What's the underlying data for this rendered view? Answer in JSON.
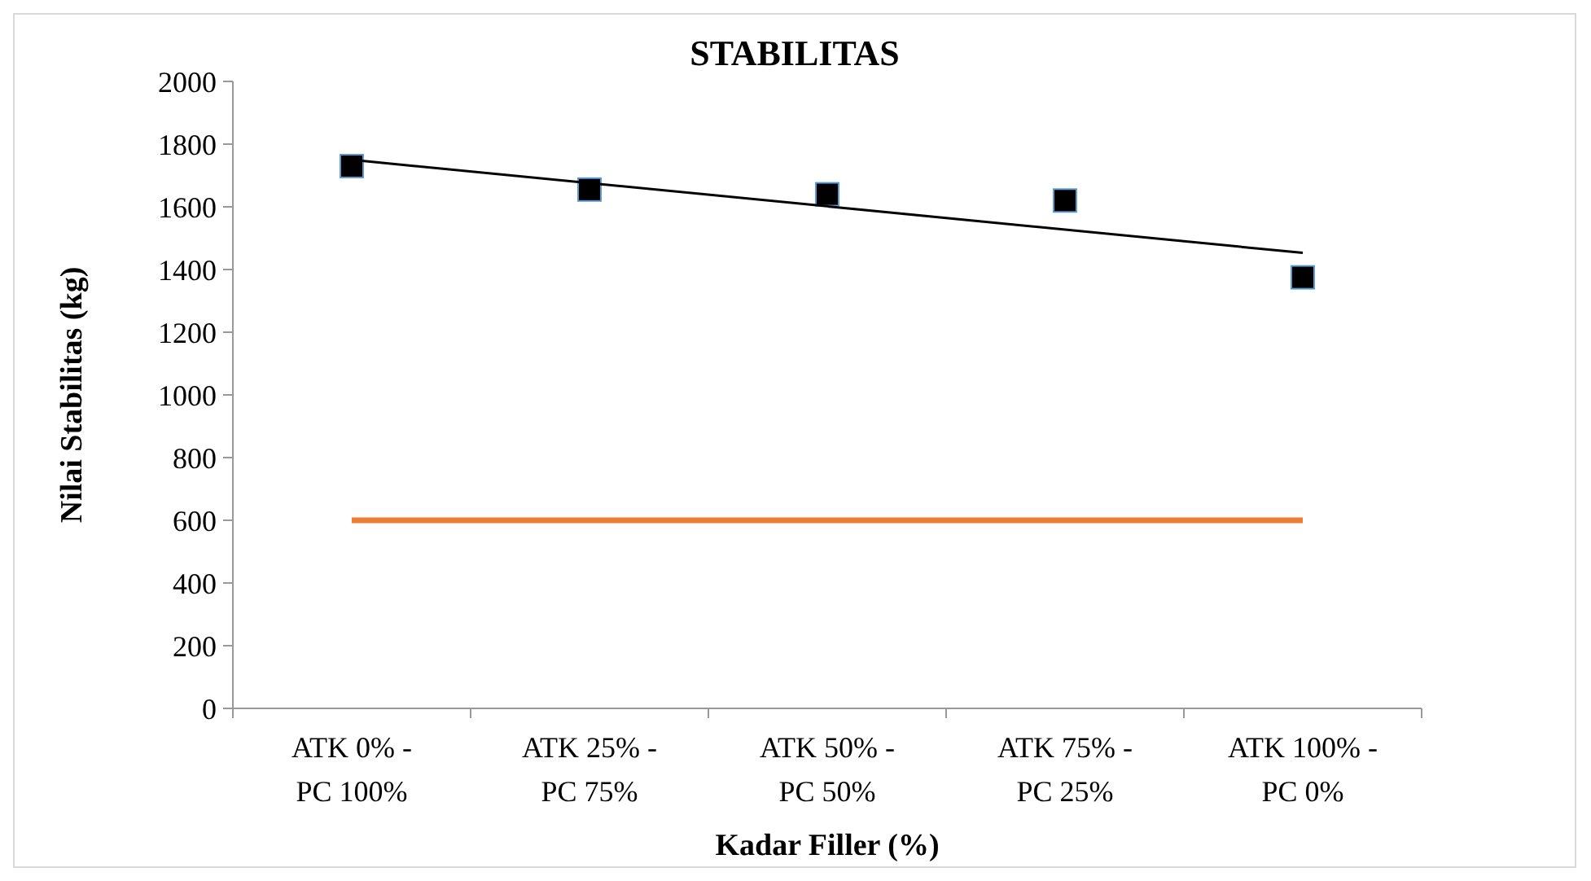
{
  "chart_data": {
    "type": "scatter",
    "title": "STABILITAS",
    "xlabel": "Kadar Filler (%)",
    "ylabel": "Nilai Stabilitas (kg)",
    "categories": [
      "ATK 0% - PC 100%",
      "ATK 25% - PC 75%",
      "ATK 50% - PC 50%",
      "ATK 75% - PC 25%",
      "ATK 100% - PC 0%"
    ],
    "series": [
      {
        "color": "#000000",
        "marker": "square",
        "values": [
          1730,
          1655,
          1640,
          1620,
          1375
        ]
      },
      {
        "type": "line",
        "color": "#000000",
        "x": [
          "ATK 0% - PC 100%",
          "ATK 100% - PC 0%"
        ],
        "values": [
          1750,
          1453
        ]
      },
      {
        "type": "line",
        "color": "#ed7d31",
        "values": [
          600,
          600,
          600,
          600,
          600
        ]
      }
    ],
    "ylim": [
      0,
      2000
    ],
    "yticks": [
      0,
      200,
      400,
      600,
      800,
      1000,
      1200,
      1400,
      1600,
      1800,
      2000
    ],
    "grid": false
  }
}
